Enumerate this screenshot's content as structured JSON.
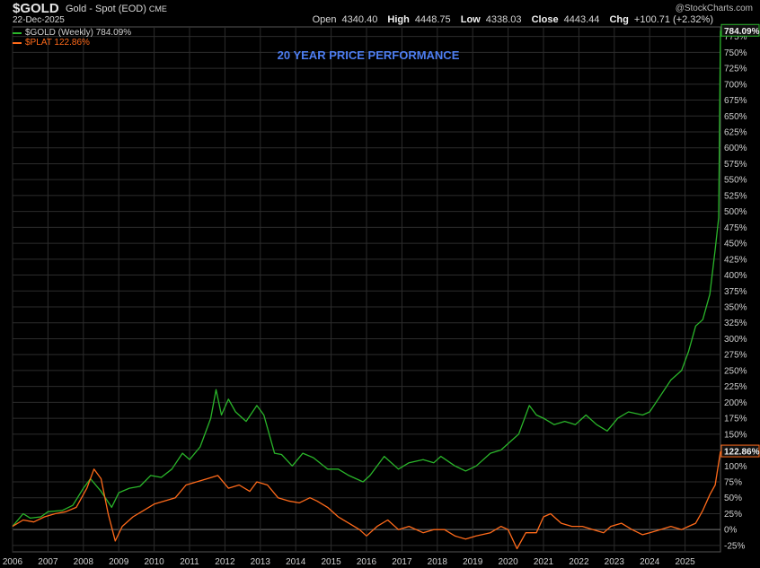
{
  "header": {
    "symbol": "$GOLD",
    "description": "Gold - Spot (EOD)",
    "exchange": "CME",
    "date": "22-Dec-2025",
    "watermark": "@StockCharts.com",
    "quote": {
      "open_label": "Open",
      "open": "4340.40",
      "high_label": "High",
      "high": "4448.75",
      "low_label": "Low",
      "low": "4338.03",
      "close_label": "Close",
      "close": "4443.44",
      "chg_label": "Chg",
      "chg": "+100.71 (+2.32%)"
    }
  },
  "legend": [
    {
      "label": "$GOLD (Weekly) 784.09%",
      "color": "#2ab52a"
    },
    {
      "label": "$PLAT 122.86%",
      "color": "#ff6a1a"
    }
  ],
  "colors": {
    "gold": "#2ab52a",
    "plat": "#ff6a1a",
    "title": "#4d7df0",
    "grid": "#2c2c2c"
  },
  "chart_data": {
    "type": "line",
    "title": "20 YEAR PRICE PERFORMANCE",
    "ylabel": "",
    "ylim": [
      -35,
      790
    ],
    "xlim": [
      2006.0,
      2026.0
    ],
    "y_unit": "%",
    "y_ticks": [
      -25,
      0,
      25,
      50,
      75,
      100,
      125,
      150,
      175,
      200,
      225,
      250,
      275,
      300,
      325,
      350,
      375,
      400,
      425,
      450,
      475,
      500,
      525,
      550,
      575,
      600,
      625,
      650,
      675,
      700,
      725,
      750,
      775
    ],
    "x_ticks": [
      "2006",
      "2007",
      "2008",
      "2009",
      "2010",
      "2011",
      "2012",
      "2013",
      "2014",
      "2015",
      "2016",
      "2017",
      "2018",
      "2019",
      "2020",
      "2021",
      "2022",
      "2023",
      "2024",
      "2025"
    ],
    "series": [
      {
        "name": "$GOLD (Weekly)",
        "last_label": "784.09%",
        "points": [
          [
            2006.0,
            5
          ],
          [
            2006.3,
            25
          ],
          [
            2006.5,
            18
          ],
          [
            2006.8,
            20
          ],
          [
            2007.0,
            28
          ],
          [
            2007.4,
            30
          ],
          [
            2007.7,
            38
          ],
          [
            2008.0,
            65
          ],
          [
            2008.2,
            80
          ],
          [
            2008.5,
            60
          ],
          [
            2008.8,
            35
          ],
          [
            2009.0,
            58
          ],
          [
            2009.3,
            65
          ],
          [
            2009.6,
            68
          ],
          [
            2009.9,
            85
          ],
          [
            2010.2,
            82
          ],
          [
            2010.5,
            95
          ],
          [
            2010.8,
            120
          ],
          [
            2011.0,
            110
          ],
          [
            2011.3,
            130
          ],
          [
            2011.6,
            175
          ],
          [
            2011.75,
            220
          ],
          [
            2011.9,
            180
          ],
          [
            2012.1,
            205
          ],
          [
            2012.3,
            185
          ],
          [
            2012.6,
            170
          ],
          [
            2012.9,
            195
          ],
          [
            2013.1,
            180
          ],
          [
            2013.4,
            120
          ],
          [
            2013.6,
            118
          ],
          [
            2013.9,
            100
          ],
          [
            2014.2,
            120
          ],
          [
            2014.5,
            113
          ],
          [
            2014.9,
            95
          ],
          [
            2015.2,
            95
          ],
          [
            2015.5,
            85
          ],
          [
            2015.9,
            75
          ],
          [
            2016.1,
            85
          ],
          [
            2016.5,
            115
          ],
          [
            2016.9,
            95
          ],
          [
            2017.2,
            105
          ],
          [
            2017.6,
            110
          ],
          [
            2017.9,
            105
          ],
          [
            2018.1,
            115
          ],
          [
            2018.5,
            100
          ],
          [
            2018.8,
            92
          ],
          [
            2019.1,
            100
          ],
          [
            2019.5,
            120
          ],
          [
            2019.8,
            125
          ],
          [
            2020.1,
            140
          ],
          [
            2020.3,
            150
          ],
          [
            2020.6,
            195
          ],
          [
            2020.8,
            180
          ],
          [
            2021.0,
            175
          ],
          [
            2021.3,
            165
          ],
          [
            2021.6,
            170
          ],
          [
            2021.9,
            165
          ],
          [
            2022.2,
            180
          ],
          [
            2022.5,
            165
          ],
          [
            2022.8,
            155
          ],
          [
            2023.1,
            175
          ],
          [
            2023.4,
            185
          ],
          [
            2023.8,
            180
          ],
          [
            2024.0,
            185
          ],
          [
            2024.3,
            210
          ],
          [
            2024.6,
            235
          ],
          [
            2024.9,
            250
          ],
          [
            2025.1,
            280
          ],
          [
            2025.3,
            320
          ],
          [
            2025.5,
            330
          ],
          [
            2025.7,
            370
          ],
          [
            2025.85,
            440
          ],
          [
            2025.95,
            490
          ],
          [
            2026.0,
            784
          ]
        ]
      },
      {
        "name": "$PLAT",
        "last_label": "122.86%",
        "points": [
          [
            2006.0,
            5
          ],
          [
            2006.3,
            15
          ],
          [
            2006.6,
            12
          ],
          [
            2006.9,
            20
          ],
          [
            2007.2,
            25
          ],
          [
            2007.5,
            28
          ],
          [
            2007.8,
            35
          ],
          [
            2008.1,
            65
          ],
          [
            2008.3,
            95
          ],
          [
            2008.5,
            80
          ],
          [
            2008.7,
            25
          ],
          [
            2008.9,
            -18
          ],
          [
            2009.1,
            5
          ],
          [
            2009.4,
            20
          ],
          [
            2009.7,
            30
          ],
          [
            2010.0,
            40
          ],
          [
            2010.3,
            45
          ],
          [
            2010.6,
            50
          ],
          [
            2010.9,
            70
          ],
          [
            2011.2,
            75
          ],
          [
            2011.5,
            80
          ],
          [
            2011.8,
            85
          ],
          [
            2012.1,
            65
          ],
          [
            2012.4,
            70
          ],
          [
            2012.7,
            60
          ],
          [
            2012.9,
            75
          ],
          [
            2013.2,
            70
          ],
          [
            2013.5,
            50
          ],
          [
            2013.8,
            45
          ],
          [
            2014.1,
            42
          ],
          [
            2014.4,
            50
          ],
          [
            2014.6,
            45
          ],
          [
            2014.9,
            35
          ],
          [
            2015.2,
            20
          ],
          [
            2015.5,
            10
          ],
          [
            2015.8,
            0
          ],
          [
            2016.0,
            -10
          ],
          [
            2016.3,
            5
          ],
          [
            2016.6,
            15
          ],
          [
            2016.9,
            0
          ],
          [
            2017.2,
            5
          ],
          [
            2017.6,
            -5
          ],
          [
            2017.9,
            0
          ],
          [
            2018.2,
            0
          ],
          [
            2018.5,
            -10
          ],
          [
            2018.8,
            -15
          ],
          [
            2019.1,
            -10
          ],
          [
            2019.5,
            -5
          ],
          [
            2019.8,
            5
          ],
          [
            2020.0,
            0
          ],
          [
            2020.25,
            -30
          ],
          [
            2020.5,
            -5
          ],
          [
            2020.8,
            -5
          ],
          [
            2021.0,
            20
          ],
          [
            2021.2,
            25
          ],
          [
            2021.5,
            10
          ],
          [
            2021.8,
            5
          ],
          [
            2022.1,
            5
          ],
          [
            2022.4,
            0
          ],
          [
            2022.7,
            -5
          ],
          [
            2022.9,
            5
          ],
          [
            2023.2,
            10
          ],
          [
            2023.5,
            0
          ],
          [
            2023.8,
            -8
          ],
          [
            2024.0,
            -5
          ],
          [
            2024.3,
            0
          ],
          [
            2024.6,
            5
          ],
          [
            2024.9,
            0
          ],
          [
            2025.1,
            5
          ],
          [
            2025.3,
            10
          ],
          [
            2025.5,
            30
          ],
          [
            2025.7,
            55
          ],
          [
            2025.85,
            70
          ],
          [
            2026.0,
            122.86
          ]
        ]
      }
    ]
  }
}
